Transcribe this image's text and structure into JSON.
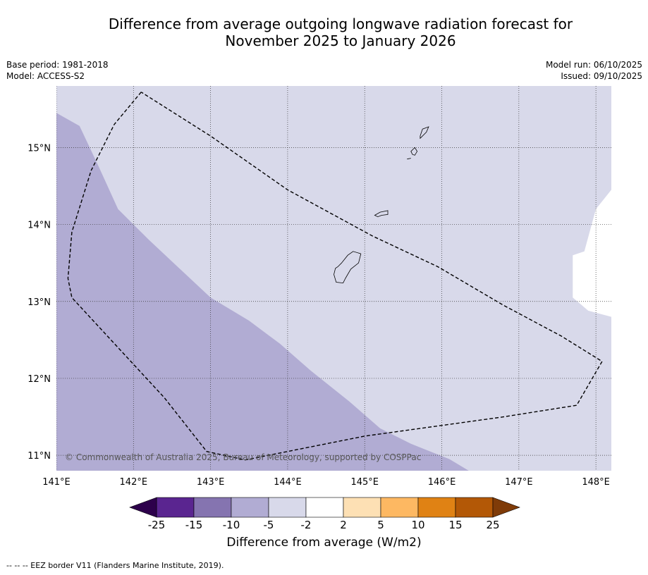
{
  "title": {
    "line1": "Difference from average outgoing longwave radiation forecast for",
    "line2": "November 2025 to January 2026"
  },
  "meta": {
    "base_period": "Base period: 1981-2018",
    "model": "Model: ACCESS-S2",
    "model_run": "Model run: 06/10/2025",
    "issued": "Issued: 09/10/2025"
  },
  "map": {
    "lon_range": [
      141.0,
      148.2
    ],
    "lat_range": [
      10.8,
      15.8
    ],
    "lon_ticks": [
      141,
      142,
      143,
      144,
      145,
      146,
      147,
      148
    ],
    "lon_labels": [
      "141°E",
      "142°E",
      "143°E",
      "144°E",
      "145°E",
      "146°E",
      "147°E",
      "148°E"
    ],
    "lat_ticks": [
      11,
      12,
      13,
      14,
      15
    ],
    "lat_labels": [
      "11°N",
      "12°N",
      "13°N",
      "14°N",
      "15°N"
    ],
    "copyright": "© Commonwealth of Australia 2025, Bureau of Meteorology, supported by COSPPac",
    "colors": {
      "band_-10_-5": "#b1acd3",
      "band_-5_-2": "#d8d9ea",
      "band_-2_2": "#ffffff"
    },
    "regions": {
      "band_-10_-5": [
        [
          141.0,
          15.45
        ],
        [
          141.3,
          15.28
        ],
        [
          141.55,
          14.75
        ],
        [
          141.8,
          14.2
        ],
        [
          142.2,
          13.8
        ],
        [
          143.0,
          13.05
        ],
        [
          143.5,
          12.75
        ],
        [
          143.9,
          12.45
        ],
        [
          144.3,
          12.1
        ],
        [
          144.8,
          11.7
        ],
        [
          145.2,
          11.35
        ],
        [
          145.6,
          11.15
        ],
        [
          146.1,
          10.95
        ],
        [
          146.35,
          10.8
        ],
        [
          141.0,
          10.8
        ]
      ],
      "band_-2_2": [
        [
          148.2,
          14.45
        ],
        [
          148.0,
          14.2
        ],
        [
          147.85,
          13.65
        ],
        [
          147.7,
          13.6
        ],
        [
          147.7,
          13.05
        ],
        [
          147.9,
          12.88
        ],
        [
          148.2,
          12.8
        ]
      ]
    },
    "eez_border": [
      [
        142.1,
        15.72
      ],
      [
        141.75,
        15.3
      ],
      [
        141.45,
        14.7
      ],
      [
        141.2,
        13.9
      ],
      [
        141.15,
        13.3
      ],
      [
        141.2,
        13.05
      ],
      [
        142.4,
        11.75
      ],
      [
        142.95,
        11.05
      ],
      [
        143.45,
        10.94
      ],
      [
        145.0,
        11.25
      ],
      [
        146.8,
        11.5
      ],
      [
        147.75,
        11.65
      ],
      [
        148.08,
        12.22
      ],
      [
        147.55,
        12.55
      ],
      [
        146.8,
        12.95
      ],
      [
        145.95,
        13.45
      ],
      [
        145.1,
        13.85
      ],
      [
        144.0,
        14.45
      ],
      [
        143.0,
        15.15
      ],
      [
        142.1,
        15.72
      ]
    ],
    "islands": [
      [
        [
          144.65,
          13.45
        ],
        [
          144.7,
          13.5
        ],
        [
          144.78,
          13.6
        ],
        [
          144.85,
          13.65
        ],
        [
          144.95,
          13.62
        ],
        [
          144.92,
          13.5
        ],
        [
          144.82,
          13.42
        ],
        [
          144.75,
          13.3
        ],
        [
          144.72,
          13.24
        ],
        [
          144.63,
          13.25
        ],
        [
          144.6,
          13.35
        ],
        [
          144.62,
          13.43
        ]
      ],
      [
        [
          145.13,
          14.12
        ],
        [
          145.2,
          14.16
        ],
        [
          145.3,
          14.18
        ],
        [
          145.3,
          14.13
        ],
        [
          145.22,
          14.12
        ],
        [
          145.17,
          14.1
        ]
      ],
      [
        [
          145.6,
          14.95
        ],
        [
          145.65,
          15.0
        ],
        [
          145.68,
          14.95
        ],
        [
          145.65,
          14.9
        ],
        [
          145.62,
          14.91
        ]
      ],
      [
        [
          145.72,
          15.12
        ],
        [
          145.8,
          15.2
        ],
        [
          145.83,
          15.27
        ],
        [
          145.75,
          15.24
        ],
        [
          145.72,
          15.15
        ]
      ],
      [
        [
          145.55,
          14.85
        ],
        [
          145.6,
          14.86
        ]
      ]
    ]
  },
  "colorbar": {
    "bounds": [
      -25,
      -15,
      -10,
      -5,
      -2,
      2,
      5,
      10,
      15,
      25
    ],
    "tick_labels": [
      "-25",
      "-15",
      "-10",
      "-5",
      "-2",
      "2",
      "5",
      "10",
      "15",
      "25"
    ],
    "colors": [
      "#5a2590",
      "#8574b0",
      "#b1acd3",
      "#d8d9ea",
      "#ffffff",
      "#fde0b4",
      "#fdb862",
      "#e08214",
      "#b35806"
    ],
    "extend_low_color": "#2d004b",
    "extend_high_color": "#7f3b08",
    "label": "Difference from average (W/m2)"
  },
  "footnote": "--  --  -- EEZ border V11 (Flanders Marine Institute, 2019)."
}
